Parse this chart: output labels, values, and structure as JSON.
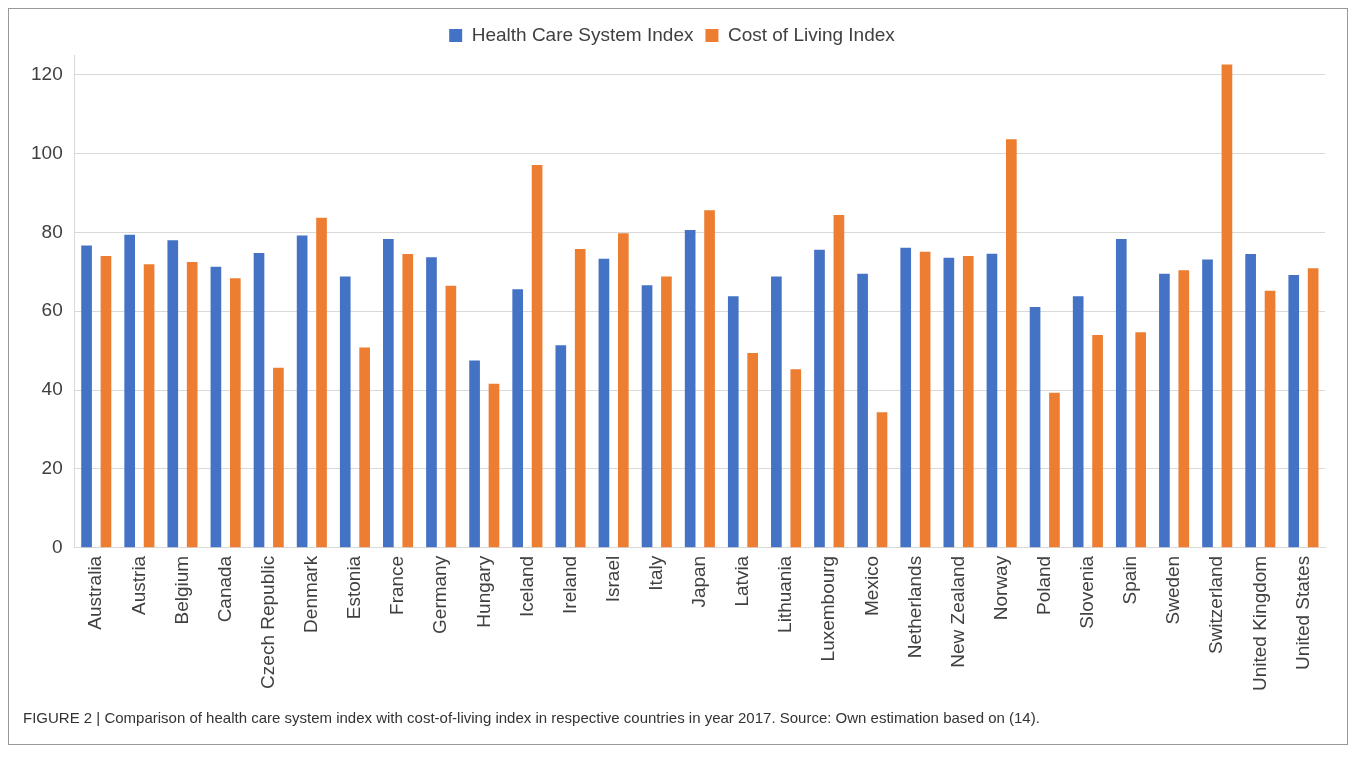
{
  "chart_data": {
    "type": "bar",
    "categories": [
      "Australia",
      "Austria",
      "Belgium",
      "Canada",
      "Czech Republic",
      "Denmark",
      "Estonia",
      "France",
      "Germany",
      "Hungary",
      "Iceland",
      "Ireland",
      "Israel",
      "Italy",
      "Japan",
      "Latvia",
      "Lithuania",
      "Luxembourg",
      "Mexico",
      "Netherlands",
      "New Zealand",
      "Norway",
      "Poland",
      "Slovenia",
      "Spain",
      "Sweden",
      "Switzerland",
      "United Kingdom",
      "United States"
    ],
    "series": [
      {
        "name": "Health Care System Index",
        "color": "#4472c4",
        "values": [
          76.7,
          79.4,
          78.0,
          71.3,
          74.8,
          79.2,
          68.8,
          78.3,
          73.7,
          47.5,
          65.6,
          51.4,
          73.3,
          66.6,
          80.6,
          63.8,
          68.8,
          75.6,
          69.5,
          76.1,
          73.6,
          74.6,
          61.1,
          63.8,
          78.3,
          69.5,
          73.1,
          74.5,
          69.2
        ]
      },
      {
        "name": "Cost of Living Index",
        "color": "#ed7d31",
        "values": [
          74.0,
          71.9,
          72.5,
          68.4,
          45.7,
          83.7,
          50.8,
          74.5,
          66.5,
          41.6,
          97.1,
          75.8,
          79.8,
          68.8,
          85.6,
          49.4,
          45.3,
          84.4,
          34.4,
          75.1,
          74.0,
          103.6,
          39.3,
          54.0,
          54.7,
          70.4,
          122.6,
          65.2,
          70.9
        ]
      }
    ],
    "ylim": [
      0,
      125
    ],
    "yticks": [
      0,
      20,
      40,
      60,
      80,
      100,
      120
    ],
    "grid": "y",
    "legend": "top",
    "annotations": [
      "FIGURE 2 | Comparison of health care system index with cost-of-living index in respective countries in year 2017. Source: Own estimation based on (14)."
    ]
  }
}
